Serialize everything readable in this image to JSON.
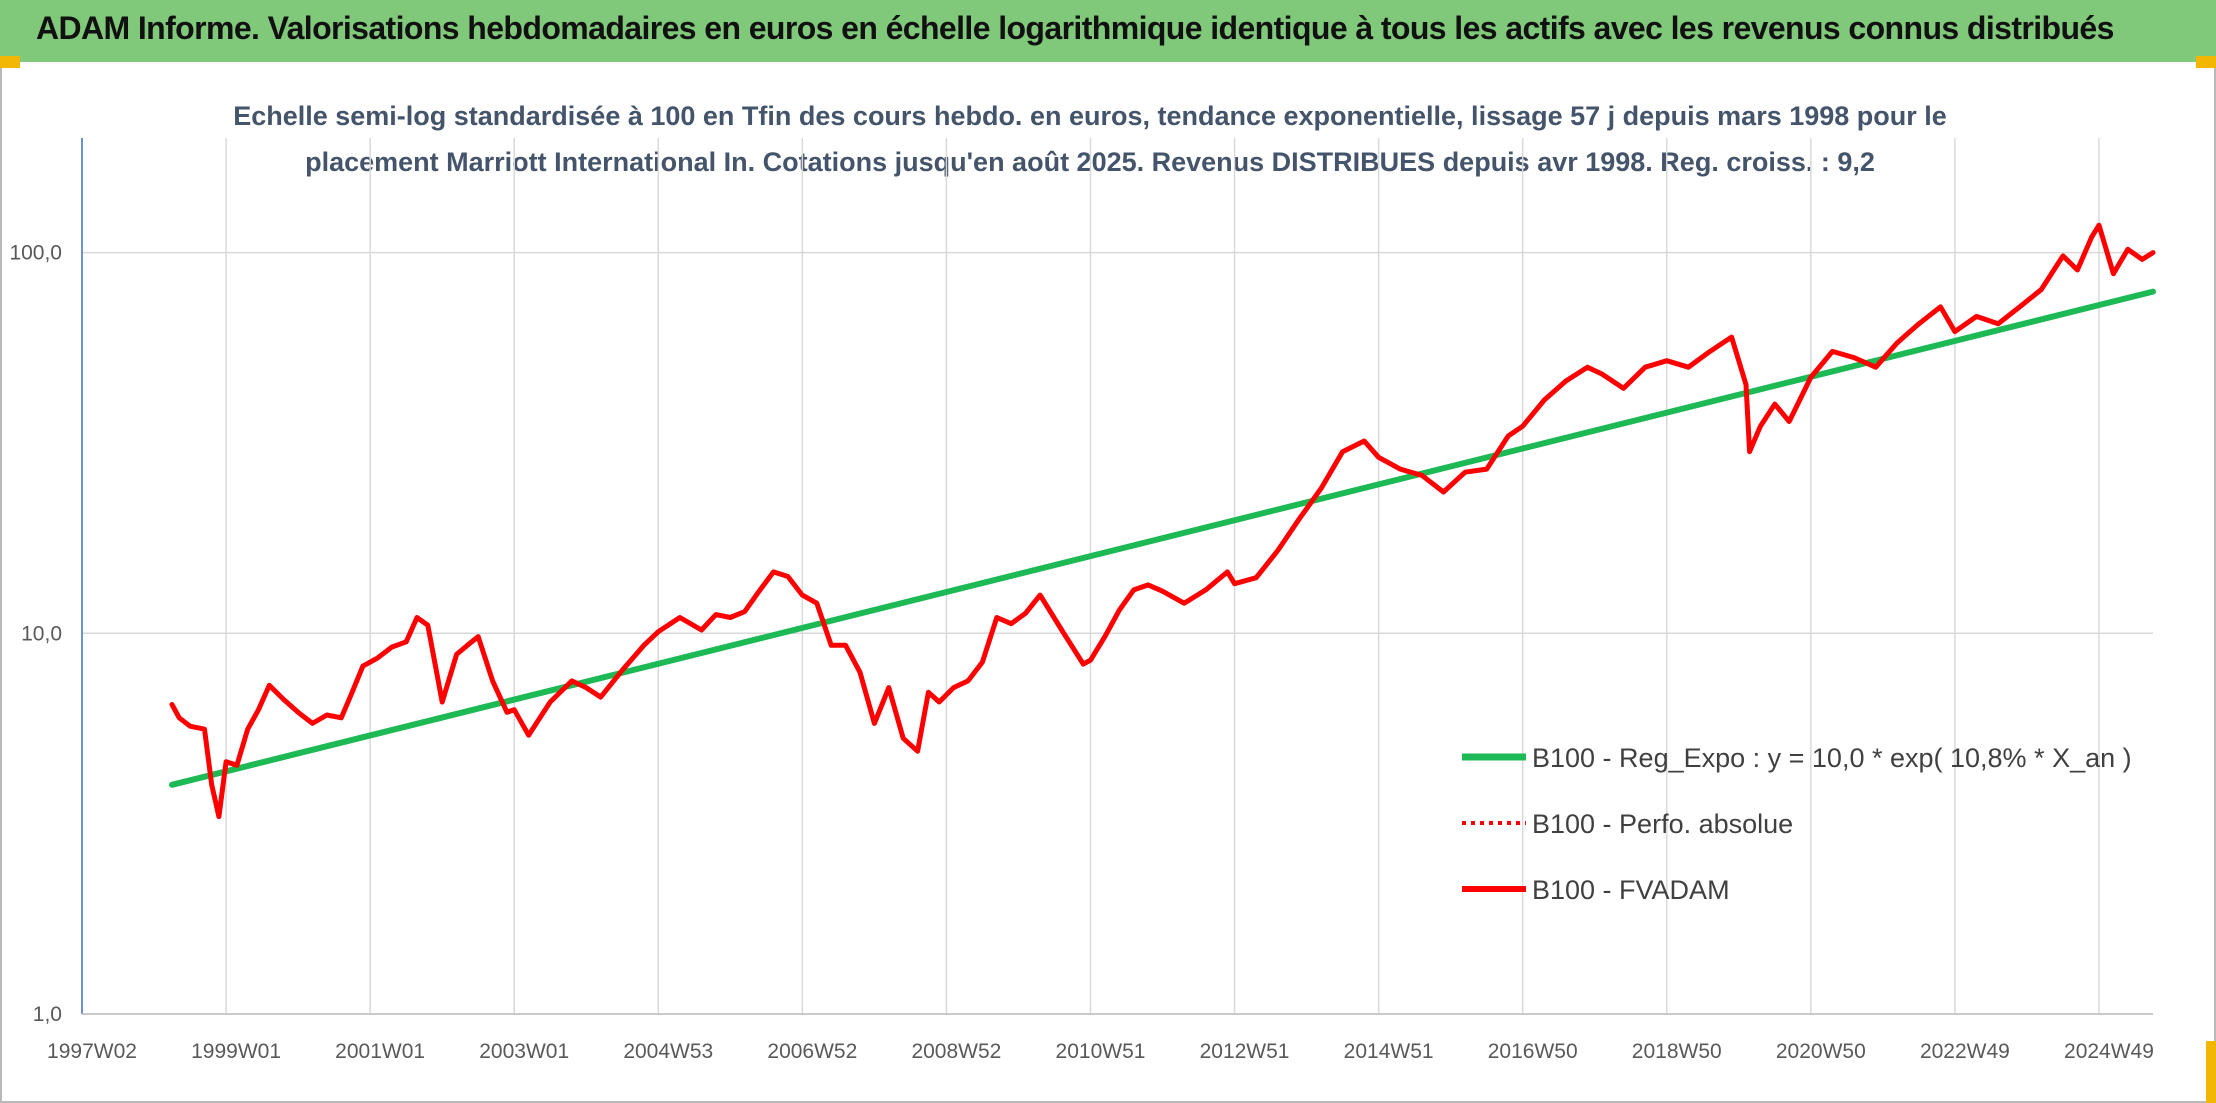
{
  "header": {
    "title": "ADAM Informe. Valorisations hebdomadaires en euros en échelle logarithmique identique à tous les actifs avec les revenus connus distribués"
  },
  "colors": {
    "header_bg": "#80c97a",
    "corner_accent": "#f2b705",
    "title_text": "#44546a",
    "trend": "#1db954",
    "perf": "#ff0000",
    "fvadam": "#ff0000",
    "axis": "#4472c4",
    "grid": "#d9d9d9"
  },
  "chart_data": {
    "type": "line",
    "title_line1": "Echelle semi-log standardisée à 100 en Tfin des cours hebdo. en euros, tendance exponentielle, lissage 57 j depuis mars 1998 pour le",
    "title_line2": "placement Marriott International In. Cotations jusqu'en août 2025. Revenus DISTRIBUES depuis avr 1998. Reg. croiss. : 9,2",
    "y_scale": "log",
    "ylim": [
      1,
      200
    ],
    "xlim": [
      1997.0,
      2025.75
    ],
    "y_ticks": [
      {
        "value": 1,
        "label": "1,0"
      },
      {
        "value": 10,
        "label": "10,0"
      },
      {
        "value": 100,
        "label": "100,0"
      }
    ],
    "x_ticks": [
      {
        "value": 1997.0,
        "label": "1997W02"
      },
      {
        "value": 1999.0,
        "label": "1999W01"
      },
      {
        "value": 2001.0,
        "label": "2001W01"
      },
      {
        "value": 2003.0,
        "label": "2003W01"
      },
      {
        "value": 2005.0,
        "label": "2004W53"
      },
      {
        "value": 2007.0,
        "label": "2006W52"
      },
      {
        "value": 2009.0,
        "label": "2008W52"
      },
      {
        "value": 2011.0,
        "label": "2010W51"
      },
      {
        "value": 2013.0,
        "label": "2012W51"
      },
      {
        "value": 2015.0,
        "label": "2014W51"
      },
      {
        "value": 2017.0,
        "label": "2016W50"
      },
      {
        "value": 2019.0,
        "label": "2018W50"
      },
      {
        "value": 2021.0,
        "label": "2020W50"
      },
      {
        "value": 2023.0,
        "label": "2022W49"
      },
      {
        "value": 2025.0,
        "label": "2024W49"
      }
    ],
    "grid": true,
    "legend_position": "center-right",
    "series": [
      {
        "name": "B100 - Reg_Expo : y = 10,0 * exp( 10,8% *  X_an )",
        "style": "solid-green",
        "x": [
          1998.25,
          2025.75
        ],
        "y": [
          4.0,
          79.0
        ]
      },
      {
        "name": "B100 - Perfo. absolue",
        "style": "dotted-red",
        "x": [],
        "y": []
      },
      {
        "name": "B100 - FVADAM",
        "style": "solid-red",
        "x": [
          1998.25,
          1998.35,
          1998.5,
          1998.7,
          1998.8,
          1998.9,
          1999.0,
          1999.15,
          1999.3,
          1999.45,
          1999.6,
          1999.8,
          2000.0,
          2000.2,
          2000.4,
          2000.6,
          2000.75,
          2000.9,
          2001.1,
          2001.3,
          2001.5,
          2001.65,
          2001.8,
          2002.0,
          2002.2,
          2002.35,
          2002.5,
          2002.7,
          2002.9,
          2003.0,
          2003.2,
          2003.5,
          2003.8,
          2004.0,
          2004.2,
          2004.5,
          2004.8,
          2005.0,
          2005.3,
          2005.6,
          2005.8,
          2006.0,
          2006.2,
          2006.4,
          2006.6,
          2006.8,
          2007.0,
          2007.2,
          2007.4,
          2007.6,
          2007.8,
          2008.0,
          2008.2,
          2008.4,
          2008.6,
          2008.75,
          2008.9,
          2009.1,
          2009.3,
          2009.5,
          2009.7,
          2009.9,
          2010.1,
          2010.3,
          2010.6,
          2010.9,
          2011.0,
          2011.2,
          2011.4,
          2011.6,
          2011.8,
          2012.0,
          2012.3,
          2012.6,
          2012.9,
          2013.0,
          2013.3,
          2013.6,
          2013.9,
          2014.2,
          2014.5,
          2014.8,
          2015.0,
          2015.3,
          2015.6,
          2015.9,
          2016.2,
          2016.5,
          2016.8,
          2017.0,
          2017.3,
          2017.6,
          2017.9,
          2018.1,
          2018.4,
          2018.7,
          2019.0,
          2019.3,
          2019.6,
          2019.9,
          2020.1,
          2020.15,
          2020.3,
          2020.5,
          2020.7,
          2020.9,
          2021.0,
          2021.3,
          2021.6,
          2021.9,
          2022.2,
          2022.5,
          2022.8,
          2023.0,
          2023.3,
          2023.6,
          2023.9,
          2024.2,
          2024.5,
          2024.7,
          2024.9,
          2025.0,
          2025.2,
          2025.4,
          2025.6,
          2025.75
        ],
        "y": [
          6.5,
          6.0,
          5.7,
          5.6,
          4.0,
          3.3,
          4.6,
          4.5,
          5.6,
          6.3,
          7.3,
          6.7,
          6.2,
          5.8,
          6.1,
          6.0,
          7.0,
          8.2,
          8.6,
          9.2,
          9.5,
          11.0,
          10.5,
          6.6,
          8.8,
          9.3,
          9.8,
          7.5,
          6.2,
          6.3,
          5.4,
          6.6,
          7.5,
          7.2,
          6.8,
          8.0,
          9.3,
          10.1,
          11.0,
          10.2,
          11.2,
          11.0,
          11.4,
          12.9,
          14.5,
          14.1,
          12.6,
          12.0,
          9.3,
          9.3,
          7.9,
          5.8,
          7.2,
          5.3,
          4.9,
          7.0,
          6.6,
          7.2,
          7.5,
          8.4,
          11.0,
          10.6,
          11.3,
          12.6,
          10.2,
          8.3,
          8.5,
          9.8,
          11.5,
          13.0,
          13.4,
          12.9,
          12.0,
          13.0,
          14.5,
          13.5,
          14.0,
          16.5,
          20.0,
          24.0,
          30.0,
          32.0,
          29.0,
          27.0,
          26.0,
          23.5,
          26.5,
          27.0,
          33.0,
          35.0,
          41.0,
          46.0,
          50.0,
          48.0,
          44.0,
          50.0,
          52.0,
          50.0,
          55.0,
          60.0,
          45.0,
          30.0,
          35.0,
          40.0,
          36.0,
          43.0,
          47.0,
          55.0,
          53.0,
          50.0,
          58.0,
          65.0,
          72.0,
          62.0,
          68.0,
          65.0,
          72.0,
          80.0,
          98.0,
          90.0,
          110.0,
          118.0,
          88.0,
          102.0,
          96.0,
          100.0
        ]
      }
    ]
  }
}
